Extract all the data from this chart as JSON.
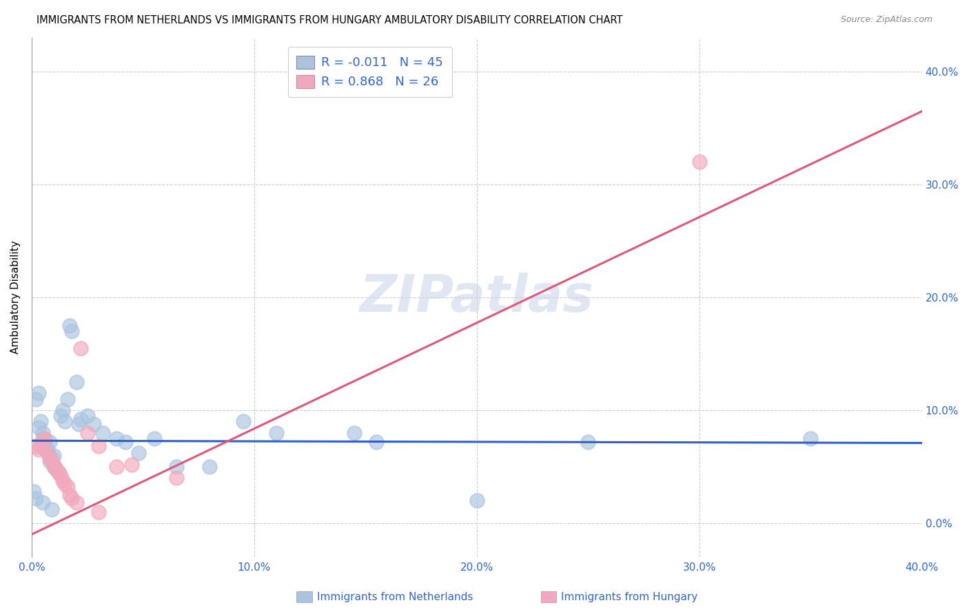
{
  "title": "IMMIGRANTS FROM NETHERLANDS VS IMMIGRANTS FROM HUNGARY AMBULATORY DISABILITY CORRELATION CHART",
  "source": "Source: ZipAtlas.com",
  "ylabel": "Ambulatory Disability",
  "xlim": [
    0.0,
    0.4
  ],
  "ylim": [
    -0.03,
    0.43
  ],
  "xtick_labels": [
    "0.0%",
    "10.0%",
    "20.0%",
    "30.0%",
    "40.0%"
  ],
  "xtick_vals": [
    0.0,
    0.1,
    0.2,
    0.3,
    0.4
  ],
  "ytick_vals": [
    0.0,
    0.1,
    0.2,
    0.3,
    0.4
  ],
  "ytick_labels": [
    "0.0%",
    "10.0%",
    "20.0%",
    "30.0%",
    "40.0%"
  ],
  "netherlands_R": "-0.011",
  "netherlands_N": "45",
  "hungary_R": "0.868",
  "hungary_N": "26",
  "netherlands_color": "#aac4e0",
  "hungary_color": "#f2a8bc",
  "netherlands_line_color": "#3060c8",
  "hungary_line_color": "#e05878",
  "watermark": "ZIPatlas",
  "netherlands_x": [
    0.002,
    0.003,
    0.003,
    0.004,
    0.005,
    0.005,
    0.006,
    0.006,
    0.007,
    0.008,
    0.008,
    0.009,
    0.01,
    0.01,
    0.011,
    0.012,
    0.013,
    0.014,
    0.015,
    0.016,
    0.017,
    0.018,
    0.02,
    0.021,
    0.022,
    0.025,
    0.028,
    0.032,
    0.038,
    0.042,
    0.048,
    0.055,
    0.065,
    0.08,
    0.095,
    0.11,
    0.145,
    0.155,
    0.2,
    0.25,
    0.001,
    0.002,
    0.005,
    0.009,
    0.35
  ],
  "netherlands_y": [
    0.11,
    0.115,
    0.085,
    0.09,
    0.08,
    0.075,
    0.07,
    0.065,
    0.065,
    0.072,
    0.055,
    0.058,
    0.06,
    0.05,
    0.048,
    0.045,
    0.095,
    0.1,
    0.09,
    0.11,
    0.175,
    0.17,
    0.125,
    0.088,
    0.092,
    0.095,
    0.088,
    0.08,
    0.075,
    0.072,
    0.062,
    0.075,
    0.05,
    0.05,
    0.09,
    0.08,
    0.08,
    0.072,
    0.02,
    0.072,
    0.028,
    0.022,
    0.018,
    0.012,
    0.075
  ],
  "hungary_x": [
    0.002,
    0.003,
    0.004,
    0.005,
    0.006,
    0.007,
    0.008,
    0.009,
    0.01,
    0.011,
    0.012,
    0.013,
    0.014,
    0.015,
    0.016,
    0.017,
    0.018,
    0.02,
    0.022,
    0.025,
    0.03,
    0.038,
    0.045,
    0.065,
    0.03,
    0.3
  ],
  "hungary_y": [
    0.068,
    0.065,
    0.068,
    0.072,
    0.075,
    0.062,
    0.058,
    0.055,
    0.052,
    0.048,
    0.045,
    0.042,
    0.038,
    0.035,
    0.032,
    0.025,
    0.022,
    0.018,
    0.155,
    0.08,
    0.068,
    0.05,
    0.052,
    0.04,
    0.01,
    0.32
  ],
  "nl_line_x0": 0.0,
  "nl_line_x1": 0.4,
  "nl_line_y0": 0.073,
  "nl_line_y1": 0.071,
  "hu_line_x0": 0.0,
  "hu_line_x1": 0.4,
  "hu_line_y0": -0.01,
  "hu_line_y1": 0.365
}
